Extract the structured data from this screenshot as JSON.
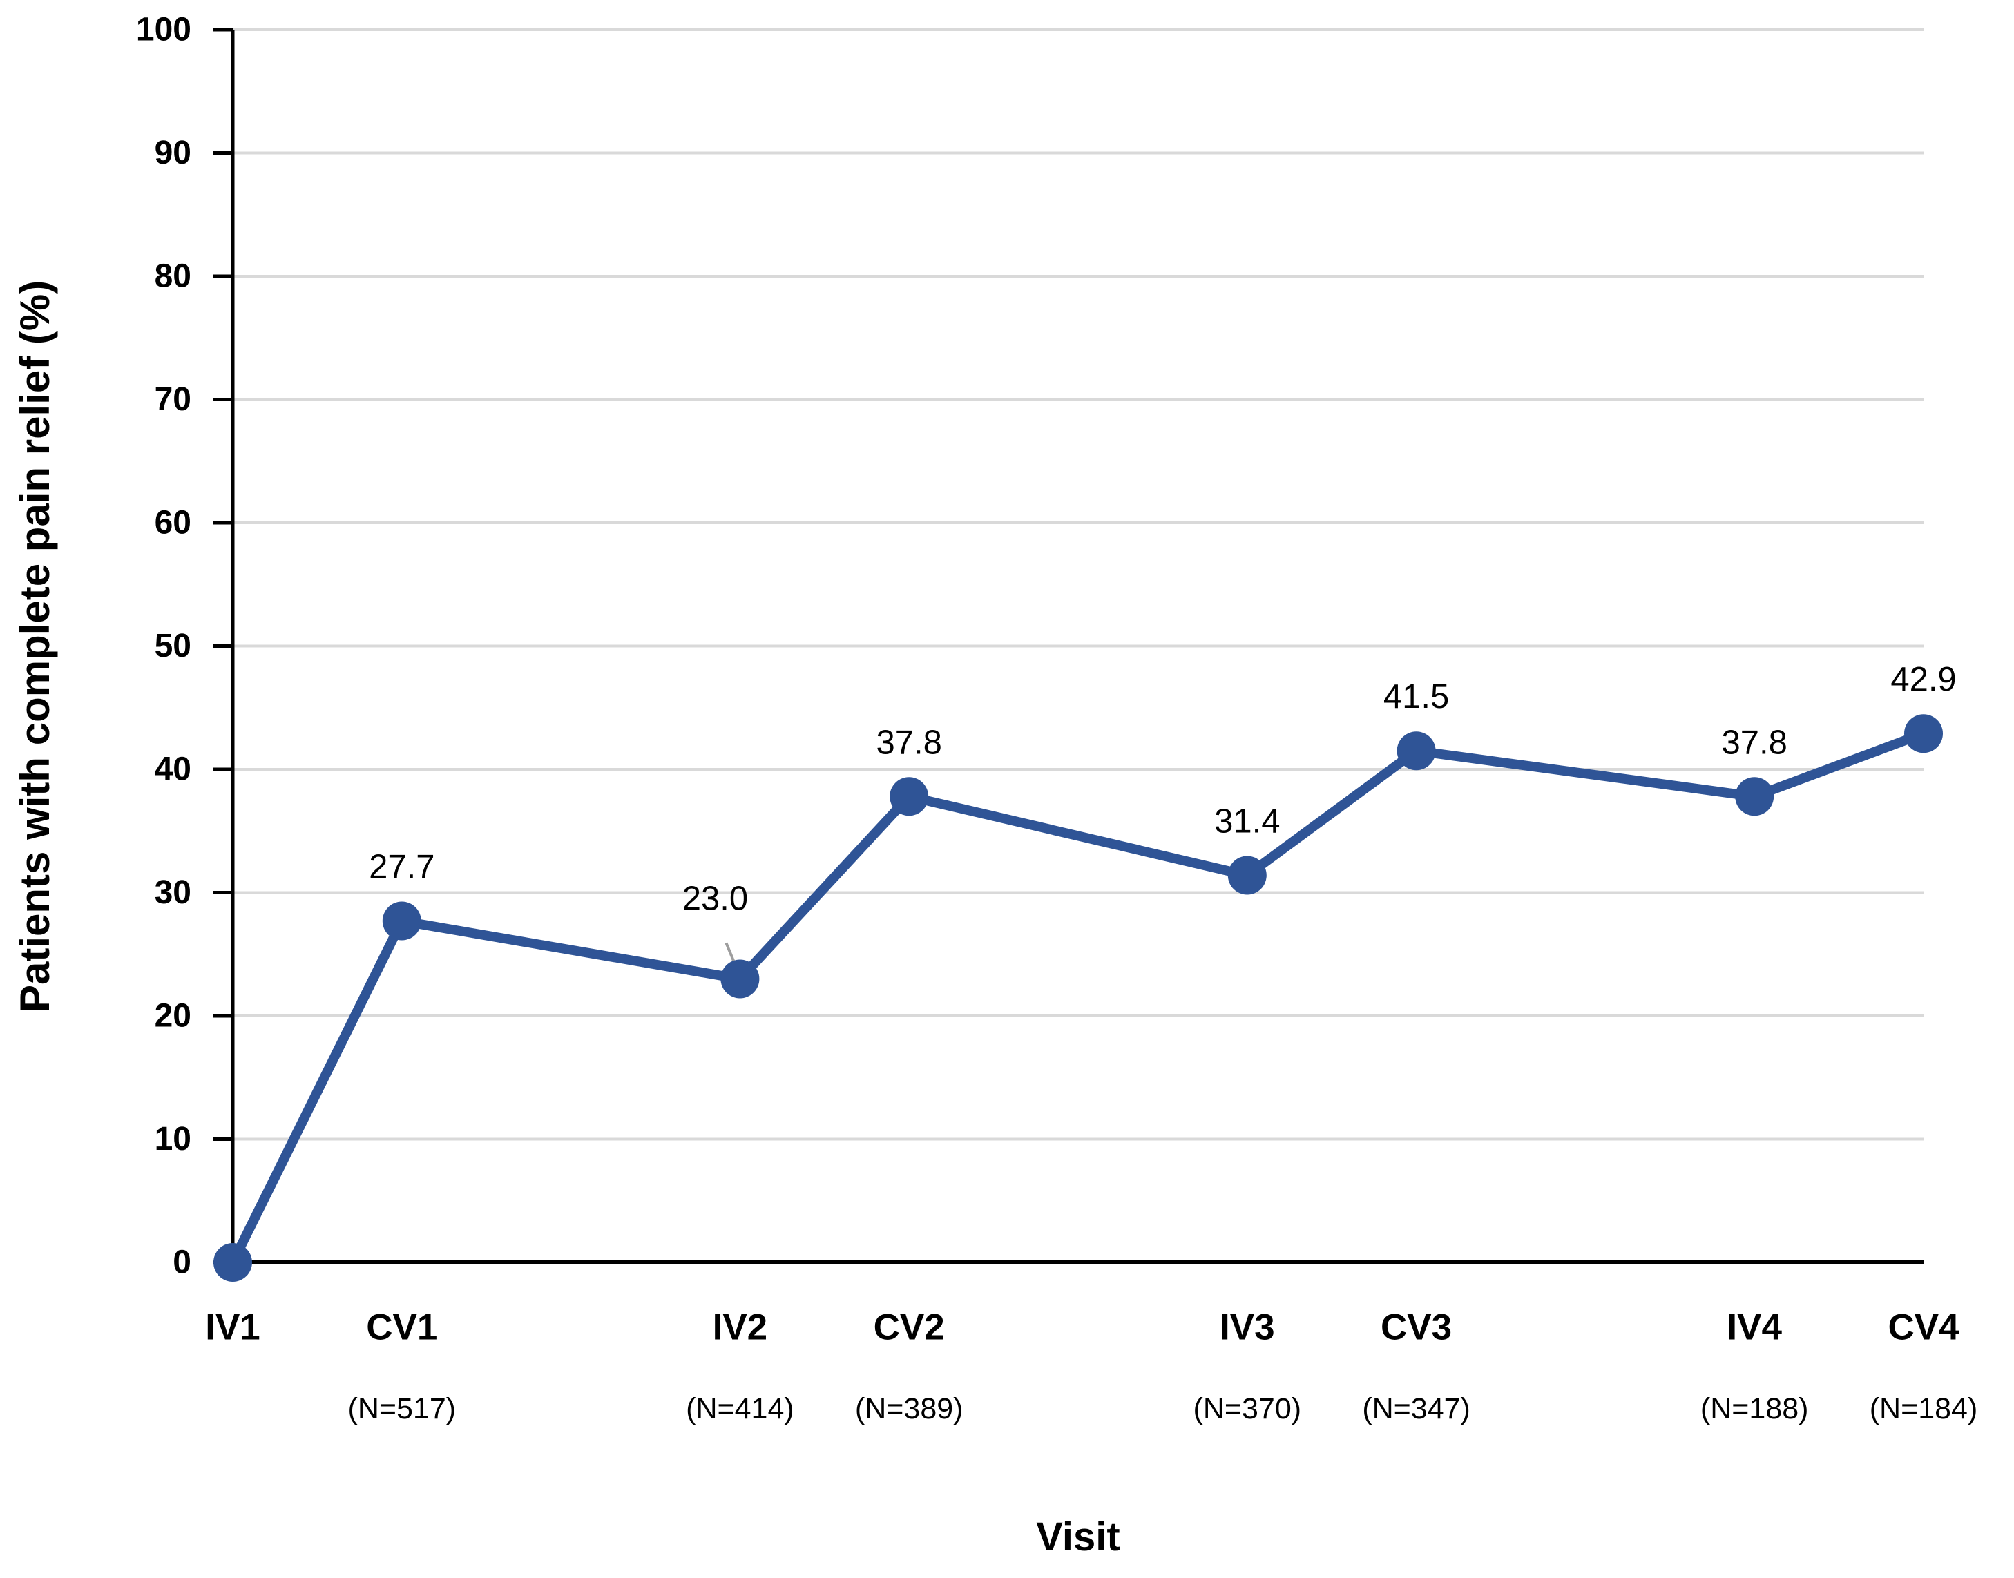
{
  "chart_data": {
    "type": "line",
    "title": "",
    "xlabel": "Visit",
    "ylabel": "Patients with complete pain relief (%)",
    "xlim": [
      0,
      10
    ],
    "ylim": [
      0,
      100
    ],
    "ytick_interval": 10,
    "ytick_labels": [
      "0",
      "10",
      "20",
      "30",
      "40",
      "50",
      "60",
      "70",
      "80",
      "90",
      "100"
    ],
    "grid": "horizontal-major-gridlines",
    "legend": "none",
    "background_color": "#FFFFFF",
    "gridline_color": "#D9D9D9",
    "axis_color": "#000000",
    "leader_line_color": "#9E9E9E",
    "series": [
      {
        "name": "Patients with complete pain relief (%)",
        "color": "#2F5496",
        "marker": "circle",
        "points": [
          {
            "visit": "IV1",
            "x": 0,
            "value": 0,
            "data_label": null,
            "n_label": null
          },
          {
            "visit": "CV1",
            "x": 1,
            "value": 27.7,
            "data_label": "27.7",
            "n_label": "(N=517)"
          },
          {
            "visit": "IV2",
            "x": 3,
            "value": 23.0,
            "data_label": "23.0",
            "n_label": "(N=414)",
            "label_dx": -36,
            "label_dy": -100,
            "leader": true
          },
          {
            "visit": "CV2",
            "x": 4,
            "value": 37.8,
            "data_label": "37.8",
            "n_label": "(N=389)"
          },
          {
            "visit": "IV3",
            "x": 6,
            "value": 31.4,
            "data_label": "31.4",
            "n_label": "(N=370)"
          },
          {
            "visit": "CV3",
            "x": 7,
            "value": 41.5,
            "data_label": "41.5",
            "n_label": "(N=347)"
          },
          {
            "visit": "IV4",
            "x": 9,
            "value": 37.8,
            "data_label": "37.8",
            "n_label": "(N=188)"
          },
          {
            "visit": "CV4",
            "x": 10,
            "value": 42.9,
            "data_label": "42.9",
            "n_label": "(N=184)"
          }
        ]
      }
    ]
  }
}
